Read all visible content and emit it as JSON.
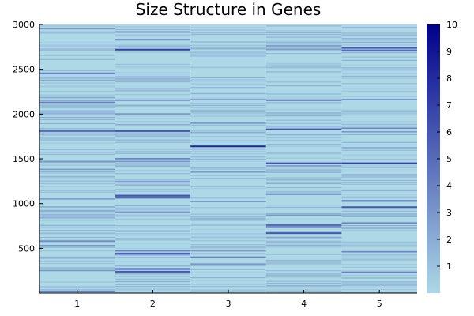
{
  "chart_data": {
    "type": "heatmap",
    "title": "Size Structure in Genes",
    "xlabel": "",
    "ylabel": "",
    "x_categories": [
      "1",
      "2",
      "3",
      "4",
      "5"
    ],
    "y_range": [
      1,
      3000
    ],
    "y_ticks": [
      500,
      1000,
      1500,
      2000,
      2500,
      3000
    ],
    "colorbar": {
      "range": [
        0,
        10
      ],
      "ticks": [
        1,
        2,
        3,
        4,
        5,
        6,
        7,
        8,
        9,
        10
      ],
      "colors": [
        "#add8e6",
        "#00008b"
      ]
    },
    "highlight_rows": {
      "1": [
        [
          2455,
          5
        ],
        [
          2130,
          4
        ],
        [
          1810,
          5
        ],
        [
          1470,
          3
        ],
        [
          1380,
          3
        ],
        [
          1050,
          3
        ],
        [
          860,
          3
        ],
        [
          580,
          4
        ],
        [
          530,
          3
        ],
        [
          250,
          3
        ],
        [
          20,
          4
        ],
        [
          2950,
          3
        ]
      ],
      "2": [
        [
          2720,
          7
        ],
        [
          2150,
          3
        ],
        [
          1810,
          6
        ],
        [
          1500,
          4
        ],
        [
          1470,
          3
        ],
        [
          1240,
          3
        ],
        [
          1090,
          6
        ],
        [
          1075,
          5
        ],
        [
          900,
          3
        ],
        [
          470,
          4
        ],
        [
          440,
          7
        ],
        [
          270,
          6
        ],
        [
          240,
          6
        ],
        [
          2830,
          4
        ],
        [
          2000,
          3
        ]
      ],
      "3": [
        [
          1640,
          8
        ],
        [
          2290,
          3
        ],
        [
          2160,
          3
        ],
        [
          1900,
          3
        ],
        [
          1350,
          3
        ],
        [
          1020,
          3
        ],
        [
          470,
          3
        ],
        [
          400,
          4
        ],
        [
          320,
          3
        ]
      ],
      "4": [
        [
          2760,
          3
        ],
        [
          2150,
          4
        ],
        [
          1830,
          6
        ],
        [
          1450,
          6
        ],
        [
          1420,
          3
        ],
        [
          1100,
          3
        ],
        [
          870,
          3
        ],
        [
          760,
          5
        ],
        [
          740,
          4
        ],
        [
          670,
          6
        ],
        [
          2720,
          3
        ]
      ],
      "5": [
        [
          2740,
          6
        ],
        [
          2710,
          5
        ],
        [
          2160,
          4
        ],
        [
          1840,
          4
        ],
        [
          1800,
          3
        ],
        [
          1450,
          7
        ],
        [
          1030,
          5
        ],
        [
          960,
          6
        ],
        [
          780,
          4
        ],
        [
          460,
          4
        ],
        [
          230,
          4
        ],
        [
          2960,
          3
        ]
      ]
    }
  }
}
